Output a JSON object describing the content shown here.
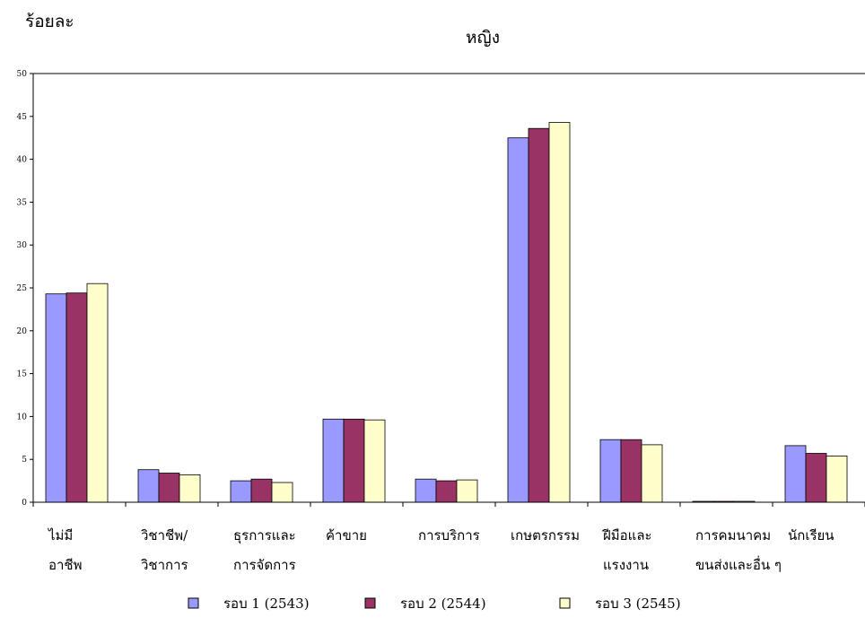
{
  "chart_data": {
    "type": "bar",
    "title": "หญิง",
    "ylabel": "ร้อยละ",
    "xlabel": "",
    "ylim": [
      0,
      50
    ],
    "yticks": [
      0,
      5,
      10,
      15,
      20,
      25,
      30,
      35,
      40,
      45,
      50
    ],
    "grid": false,
    "legend_position": "bottom",
    "categories": [
      [
        "ไม่มี",
        "อาชีพ"
      ],
      [
        "วิชาชีพ/",
        "วิชาการ"
      ],
      [
        "ธุรการและ",
        "การจัดการ"
      ],
      [
        "ค้าขาย"
      ],
      [
        "การบริการ"
      ],
      [
        "เกษตรกรรม"
      ],
      [
        "ฝีมือและ",
        "แรงงาน"
      ],
      [
        "การคมนาคม",
        "ขนส่งและอื่น ๆ"
      ],
      [
        "นักเรียน"
      ]
    ],
    "series": [
      {
        "name": "รอบ 1 (2543)",
        "color": "#9999ff",
        "values": [
          24.3,
          3.8,
          2.5,
          9.7,
          2.7,
          42.5,
          7.3,
          0.1,
          6.6
        ]
      },
      {
        "name": "รอบ 2 (2544)",
        "color": "#993366",
        "values": [
          24.4,
          3.4,
          2.7,
          9.7,
          2.5,
          43.6,
          7.3,
          0.1,
          5.7
        ]
      },
      {
        "name": "รอบ 3 (2545)",
        "color": "#ffffcc",
        "values": [
          25.5,
          3.2,
          2.3,
          9.6,
          2.6,
          44.3,
          6.7,
          0.1,
          5.4
        ]
      }
    ]
  }
}
